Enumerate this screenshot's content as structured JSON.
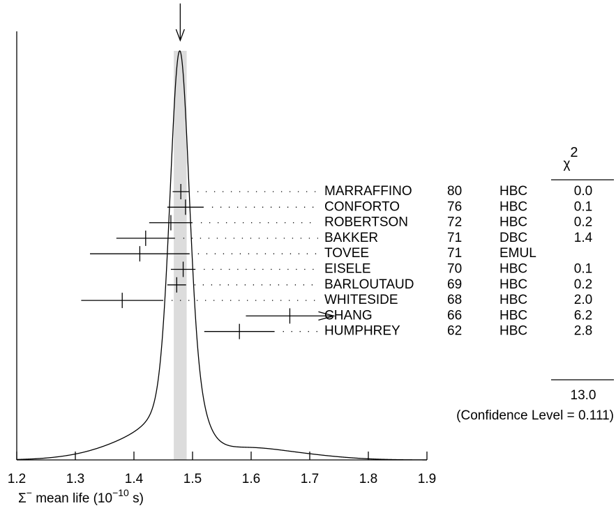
{
  "chart_data": {
    "type": "ideogram",
    "categories": [
      "MARRAFFINO",
      "CONFORTO",
      "ROBERTSON",
      "BAKKER",
      "TOVEE",
      "EISELE",
      "BARLOUTAUD",
      "WHITESIDE",
      "CHANG",
      "HUMPHREY"
    ],
    "years": [
      80,
      76,
      72,
      71,
      71,
      70,
      69,
      68,
      66,
      62
    ],
    "techniques": [
      "HBC",
      "HBC",
      "HBC",
      "DBC",
      "EMUL",
      "HBC",
      "HBC",
      "HBC",
      "HBC",
      "HBC"
    ],
    "values": [
      1.48,
      1.488,
      1.463,
      1.42,
      1.41,
      1.484,
      1.473,
      1.38,
      1.666,
      1.58
    ],
    "errors": [
      0.014,
      0.031,
      0.037,
      0.05,
      0.085,
      0.021,
      0.016,
      0.07,
      0.075,
      0.06
    ],
    "chi2": [
      "0.0",
      "0.1",
      "0.2",
      "1.4",
      null,
      "0.1",
      "0.2",
      "2.0",
      "6.2",
      "2.8"
    ],
    "chi2_header": {
      "symbol": "χ",
      "sup": "2"
    },
    "chi2_total": "13.0",
    "confidence_label": "(Confidence Level = 0.111)",
    "average": {
      "value": 1.479,
      "error": 0.011
    },
    "xlabel_parts": [
      {
        "text": "Σ"
      },
      {
        "text": "−",
        "sup": true
      },
      {
        "text": " mean life (10"
      },
      {
        "text": "−10",
        "sup": true
      },
      {
        "text": " s)"
      }
    ],
    "xlim": [
      1.2,
      1.9
    ],
    "xticks": [
      1.2,
      1.3,
      1.4,
      1.5,
      1.6,
      1.7,
      1.8,
      1.9
    ]
  }
}
